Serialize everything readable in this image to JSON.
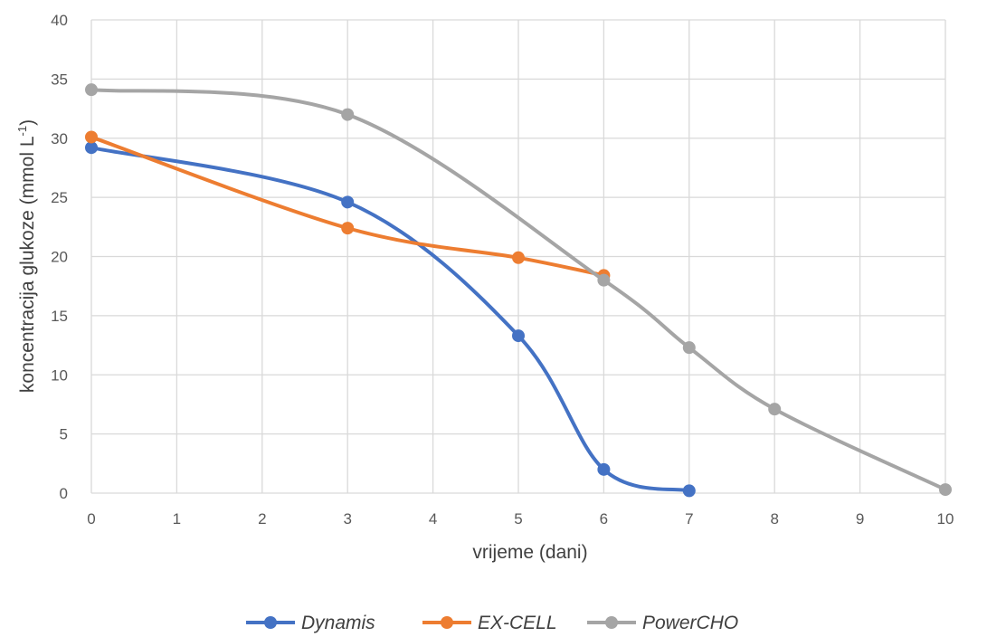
{
  "chart_data": {
    "type": "line",
    "title": "",
    "xlabel": "vrijeme (dani)",
    "ylabel_main": "koncentracija glukoze (mmol L",
    "ylabel_sup": "-1",
    "ylabel_close": ")",
    "xlim": [
      0,
      10
    ],
    "ylim": [
      0,
      40
    ],
    "x_ticks": [
      0,
      1,
      2,
      3,
      4,
      5,
      6,
      7,
      8,
      9,
      10
    ],
    "y_ticks": [
      0,
      5,
      10,
      15,
      20,
      25,
      30,
      35,
      40
    ],
    "grid": true,
    "legend_position": "bottom",
    "series": [
      {
        "name": "Dynamis",
        "color": "#4472C4",
        "x": [
          0,
          3,
          5,
          6,
          7
        ],
        "y": [
          29.2,
          24.6,
          13.3,
          2.0,
          0.2
        ]
      },
      {
        "name": "EX-CELL",
        "color": "#ED7D31",
        "x": [
          0,
          3,
          5,
          6
        ],
        "y": [
          30.1,
          22.4,
          19.9,
          18.4
        ]
      },
      {
        "name": "PowerCHO",
        "color": "#A5A5A5",
        "x": [
          0,
          3,
          6,
          7,
          8,
          10
        ],
        "y": [
          34.1,
          32.0,
          18.0,
          12.3,
          7.1,
          0.3
        ]
      }
    ]
  }
}
